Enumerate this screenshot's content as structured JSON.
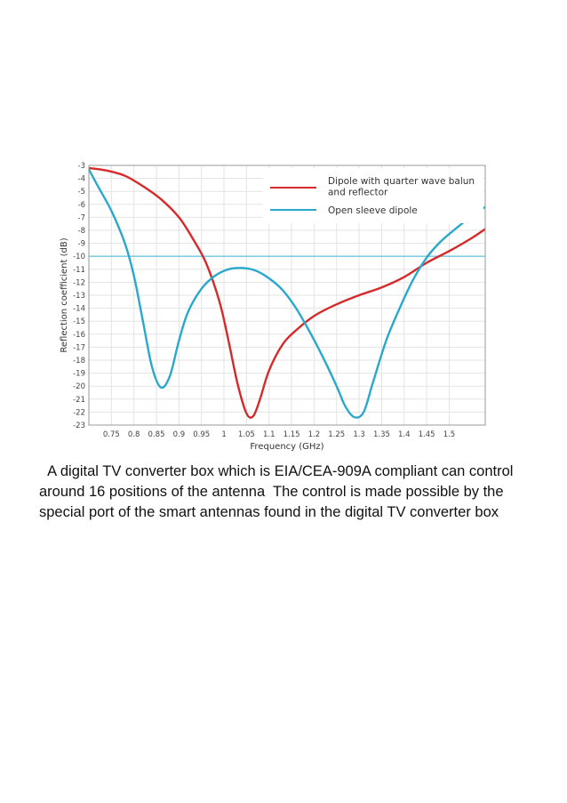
{
  "chart_data": {
    "type": "line",
    "xlabel": "Frequency (GHz)",
    "ylabel": "Reflection coefficient (dB)",
    "xlim": [
      0.7,
      1.58
    ],
    "ylim": [
      -23,
      -3
    ],
    "x_ticks": [
      "0.75",
      "0.8",
      "0.85",
      "0.9",
      "0.95",
      "1",
      "1.05",
      "1.1",
      "1.15",
      "1.2",
      "1.25",
      "1.3",
      "1.35",
      "1.4",
      "1.45",
      "1.5"
    ],
    "y_ticks": [
      "-3",
      "-4",
      "-5",
      "-6",
      "-7",
      "-8",
      "-9",
      "-10",
      "-11",
      "-12",
      "-13",
      "-14",
      "-15",
      "-16",
      "-17",
      "-18",
      "-19",
      "-20",
      "-21",
      "-22",
      "-23"
    ],
    "grid": true,
    "legend_position": "top-right",
    "reference_line": {
      "y": -10,
      "color": "#6fc6e0"
    },
    "series": [
      {
        "name": "Dipole with quarter wave balun and reflector",
        "color": "#d62a2a",
        "x": [
          0.7,
          0.74,
          0.78,
          0.82,
          0.86,
          0.9,
          0.93,
          0.96,
          0.99,
          1.01,
          1.03,
          1.05,
          1.065,
          1.08,
          1.1,
          1.13,
          1.16,
          1.2,
          1.25,
          1.3,
          1.35,
          1.4,
          1.45,
          1.5,
          1.55,
          1.58
        ],
        "y": [
          -3.2,
          -3.4,
          -3.8,
          -4.6,
          -5.6,
          -7.0,
          -8.6,
          -10.5,
          -13.5,
          -16.5,
          -19.8,
          -22.1,
          -22.3,
          -21.0,
          -18.8,
          -16.8,
          -15.7,
          -14.6,
          -13.7,
          -13.0,
          -12.4,
          -11.6,
          -10.5,
          -9.6,
          -8.6,
          -7.9
        ]
      },
      {
        "name": "Open sleeve dipole",
        "color": "#2aa8cc",
        "x": [
          0.7,
          0.72,
          0.75,
          0.78,
          0.8,
          0.82,
          0.84,
          0.86,
          0.88,
          0.9,
          0.92,
          0.95,
          0.98,
          1.01,
          1.04,
          1.07,
          1.1,
          1.13,
          1.16,
          1.19,
          1.22,
          1.25,
          1.27,
          1.29,
          1.31,
          1.33,
          1.36,
          1.39,
          1.42,
          1.45,
          1.48,
          1.51,
          1.55,
          1.58
        ],
        "y": [
          -3.3,
          -4.6,
          -6.5,
          -9.0,
          -11.5,
          -15.0,
          -18.5,
          -20.1,
          -19.2,
          -16.5,
          -14.3,
          -12.5,
          -11.5,
          -11.0,
          -10.9,
          -11.1,
          -11.7,
          -12.6,
          -14.0,
          -15.8,
          -17.8,
          -20.0,
          -21.6,
          -22.4,
          -22.0,
          -19.8,
          -16.5,
          -14.0,
          -11.8,
          -10.1,
          -8.9,
          -8.0,
          -6.9,
          -6.2
        ]
      }
    ]
  },
  "caption": "  A digital TV converter box which is EIA/CEA-909A compliant can control around 16 positions of the antenna  The control is made possible by the special port of the smart antennas found in the digital TV converter box"
}
